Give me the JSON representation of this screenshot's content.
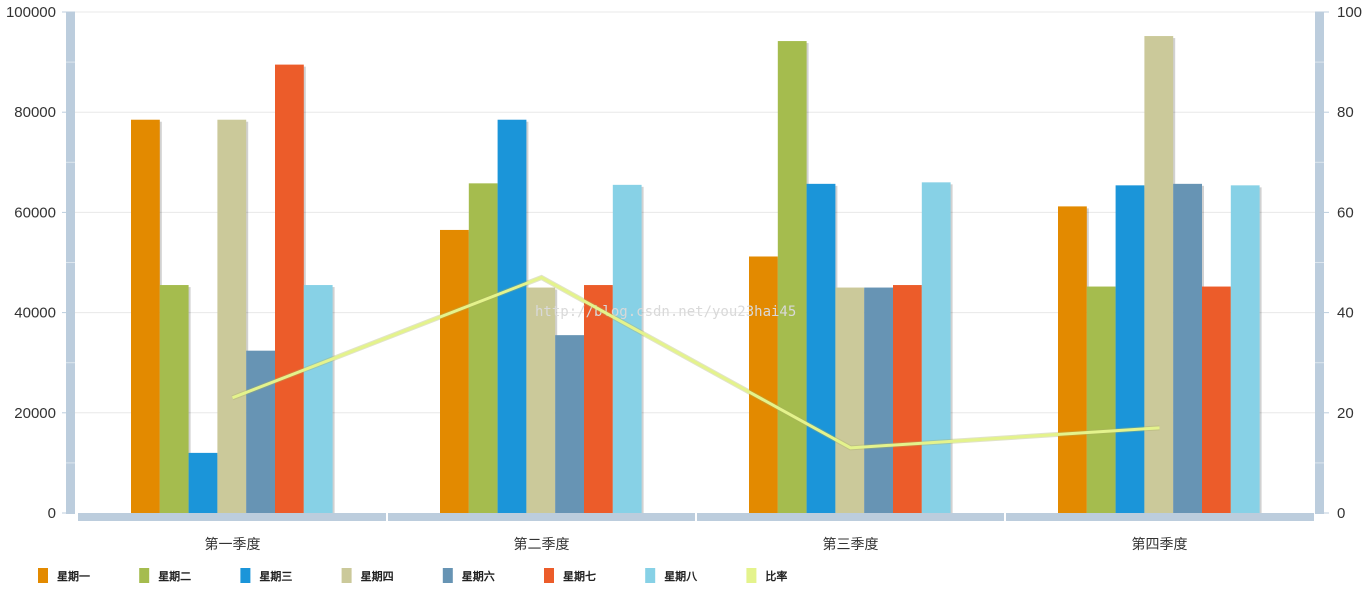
{
  "chart_data": {
    "type": "bar",
    "categories": [
      "第一季度",
      "第二季度",
      "第三季度",
      "第四季度"
    ],
    "series": [
      {
        "name": "星期一",
        "type": "bar",
        "color": "#e38a00",
        "values": [
          78500,
          56500,
          51200,
          61200
        ]
      },
      {
        "name": "星期二",
        "type": "bar",
        "color": "#a5bc4e",
        "values": [
          45500,
          65800,
          94200,
          45200
        ]
      },
      {
        "name": "星期三",
        "type": "bar",
        "color": "#1b95d9",
        "values": [
          12000,
          78500,
          65700,
          65400
        ]
      },
      {
        "name": "星期四",
        "type": "bar",
        "color": "#cbc99a",
        "values": [
          78500,
          45000,
          45000,
          95200
        ]
      },
      {
        "name": "星期六",
        "type": "bar",
        "color": "#6794b4",
        "values": [
          32400,
          35500,
          45000,
          65700
        ]
      },
      {
        "name": "星期七",
        "type": "bar",
        "color": "#ec5c2a",
        "values": [
          89500,
          45500,
          45500,
          45200
        ]
      },
      {
        "name": "星期八",
        "type": "bar",
        "color": "#87d1e6",
        "values": [
          45500,
          65500,
          66000,
          65400
        ]
      },
      {
        "name": "比率",
        "type": "line",
        "axis": "right",
        "color": "#e4f38c",
        "values": [
          23,
          47,
          13,
          17
        ]
      }
    ],
    "y_left": {
      "min": 0,
      "max": 100000,
      "ticks": [
        "0",
        "20000",
        "40000",
        "60000",
        "80000",
        "100000"
      ]
    },
    "y_right": {
      "min": 0,
      "max": 100,
      "ticks": [
        "0",
        "20",
        "40",
        "60",
        "80",
        "100"
      ]
    },
    "grid": true,
    "legend_position": "bottom-left",
    "watermark": "http://blog.csdn.net/you23hai45"
  }
}
